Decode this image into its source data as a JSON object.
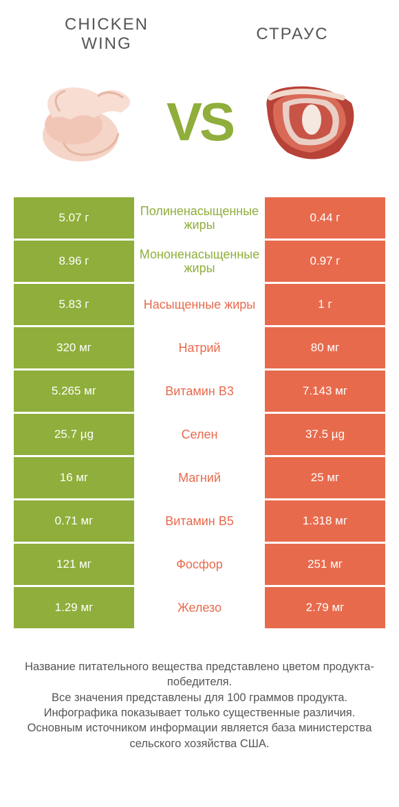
{
  "colors": {
    "green": "#8fae3b",
    "orange": "#e86a4c",
    "row_gap": "#ffffff",
    "text_footer": "#555555",
    "text_header": "#555555"
  },
  "header": {
    "left_line1": "CHICKEN",
    "left_line2": "WING",
    "right": "СТРАУС",
    "vs": "VS"
  },
  "table": {
    "left_bg": "#8fae3b",
    "right_bg": "#e86a4c",
    "rows": [
      {
        "left": "5.07 г",
        "mid": "Полиненасыщенные жиры",
        "mid_color": "#8fae3b",
        "right": "0.44 г"
      },
      {
        "left": "8.96 г",
        "mid": "Мононенасыщенные жиры",
        "mid_color": "#8fae3b",
        "right": "0.97 г"
      },
      {
        "left": "5.83 г",
        "mid": "Насыщенные жиры",
        "mid_color": "#e86a4c",
        "right": "1 г"
      },
      {
        "left": "320 мг",
        "mid": "Натрий",
        "mid_color": "#e86a4c",
        "right": "80 мг"
      },
      {
        "left": "5.265 мг",
        "mid": "Витамин B3",
        "mid_color": "#e86a4c",
        "right": "7.143 мг"
      },
      {
        "left": "25.7 µg",
        "mid": "Селен",
        "mid_color": "#e86a4c",
        "right": "37.5 µg"
      },
      {
        "left": "16 мг",
        "mid": "Магний",
        "mid_color": "#e86a4c",
        "right": "25 мг"
      },
      {
        "left": "0.71 мг",
        "mid": "Витамин B5",
        "mid_color": "#e86a4c",
        "right": "1.318 мг"
      },
      {
        "left": "121 мг",
        "mid": "Фосфор",
        "mid_color": "#e86a4c",
        "right": "251 мг"
      },
      {
        "left": "1.29 мг",
        "mid": "Железо",
        "mid_color": "#e86a4c",
        "right": "2.79 мг"
      }
    ]
  },
  "footer": {
    "l1": "Название питательного вещества представлено цветом продукта-победителя.",
    "l2": "Все значения представлены для 100 граммов продукта.",
    "l3": "Инфографика показывает только существенные различия.",
    "l4": "Основным источником информации является база министерства сельского хозяйства США."
  }
}
